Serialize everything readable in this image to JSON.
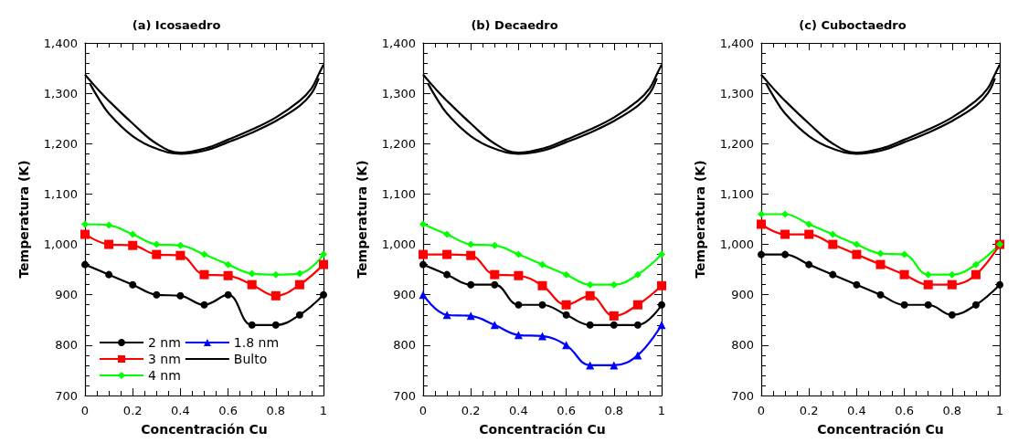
{
  "chart_data": [
    {
      "type": "line",
      "title": "(a) Icosaedro",
      "xlabel": "Concentración Cu",
      "ylabel": "Temperatura (K)",
      "xlim": [
        0,
        1
      ],
      "xticks": [
        0,
        0.2,
        0.4,
        0.6,
        0.8,
        1
      ],
      "ylim": [
        700,
        1400
      ],
      "yticks": [
        700,
        800,
        900,
        {
          "value": 1000,
          "label": "1,000"
        },
        {
          "value": 1100,
          "label": "1,100"
        },
        {
          "value": 1200,
          "label": "1,200"
        },
        {
          "value": 1300,
          "label": "1,300"
        },
        {
          "value": 1400,
          "label": "1,400"
        }
      ],
      "grid": false,
      "legend": "bottom left",
      "series": [
        {
          "name": "2 nm",
          "color": "#000000",
          "marker": "circle",
          "x": [
            0,
            0.1,
            0.2,
            0.3,
            0.4,
            0.5,
            0.6,
            0.7,
            0.8,
            0.9,
            1
          ],
          "values": [
            960,
            940,
            920,
            900,
            898,
            880,
            900,
            840,
            840,
            860,
            900
          ]
        },
        {
          "name": "3 nm",
          "color": "#ff0000",
          "marker": "square",
          "x": [
            0,
            0.1,
            0.2,
            0.3,
            0.4,
            0.5,
            0.6,
            0.7,
            0.8,
            0.9,
            1
          ],
          "values": [
            1020,
            1000,
            998,
            980,
            978,
            940,
            938,
            920,
            898,
            920,
            960
          ]
        },
        {
          "name": "4 nm",
          "color": "#00ff00",
          "marker": "diamond",
          "x": [
            0,
            0.1,
            0.2,
            0.3,
            0.4,
            0.5,
            0.6,
            0.7,
            0.8,
            0.9,
            1
          ],
          "values": [
            1040,
            1038,
            1020,
            1000,
            998,
            980,
            960,
            942,
            940,
            942,
            980
          ]
        },
        {
          "name": "1.8 nm",
          "color": "#0000ff",
          "marker": "triangle"
        },
        {
          "name": "Bulto",
          "color": "#000000",
          "marker": "none",
          "x": [
            0,
            0.02,
            0.05,
            0.1,
            0.2,
            0.3,
            0.4,
            0.5,
            0.6,
            0.7,
            0.8,
            0.9,
            0.95,
            0.98,
            1
          ],
          "values": [
            1337,
            1326,
            1310,
            1285,
            1240,
            1200,
            1182,
            1190,
            1208,
            1228,
            1252,
            1285,
            1310,
            1338,
            1357
          ]
        },
        {
          "color": "#000000",
          "marker": "none",
          "x": [
            0.02,
            0.05,
            0.1,
            0.2,
            0.3,
            0.4,
            0.5,
            0.6,
            0.7,
            0.8,
            0.9,
            0.95,
            0.98
          ],
          "values": [
            1320,
            1295,
            1260,
            1215,
            1190,
            1180,
            1186,
            1203,
            1222,
            1245,
            1275,
            1300,
            1330
          ]
        }
      ]
    },
    {
      "type": "line",
      "title": "(b) Decaedro",
      "xlabel": "Concentración Cu",
      "ylabel": "Temperatura (K)",
      "xlim": [
        0,
        1
      ],
      "xticks": [
        0,
        0.2,
        0.4,
        0.6,
        0.8,
        1
      ],
      "ylim": [
        700,
        1400
      ],
      "yticks": [
        700,
        800,
        900,
        {
          "value": 1000,
          "label": "1,000"
        },
        {
          "value": 1100,
          "label": "1,100"
        },
        {
          "value": 1200,
          "label": "1,200"
        },
        {
          "value": 1300,
          "label": "1,300"
        },
        {
          "value": 1400,
          "label": "1,400"
        }
      ],
      "grid": false,
      "series": [
        {
          "color": "#000000",
          "marker": "circle",
          "x": [
            0,
            0.1,
            0.2,
            0.3,
            0.4,
            0.5,
            0.6,
            0.7,
            0.8,
            0.9,
            1
          ],
          "values": [
            960,
            940,
            920,
            920,
            880,
            880,
            860,
            840,
            840,
            840,
            880
          ]
        },
        {
          "color": "#ff0000",
          "marker": "square",
          "x": [
            0,
            0.1,
            0.2,
            0.3,
            0.4,
            0.5,
            0.6,
            0.7,
            0.8,
            0.9,
            1
          ],
          "values": [
            980,
            980,
            978,
            940,
            938,
            918,
            880,
            898,
            858,
            880,
            918
          ]
        },
        {
          "color": "#00ff00",
          "marker": "diamond",
          "x": [
            0,
            0.1,
            0.2,
            0.3,
            0.4,
            0.5,
            0.6,
            0.7,
            0.8,
            0.9,
            1
          ],
          "values": [
            1040,
            1020,
            1000,
            998,
            980,
            960,
            940,
            920,
            920,
            940,
            980
          ]
        },
        {
          "color": "#0000ff",
          "marker": "triangle",
          "x": [
            0,
            0.1,
            0.2,
            0.3,
            0.4,
            0.5,
            0.6,
            0.7,
            0.8,
            0.9,
            1
          ],
          "values": [
            900,
            860,
            858,
            840,
            820,
            818,
            800,
            760,
            760,
            780,
            840
          ]
        },
        {
          "color": "#000000",
          "marker": "none",
          "x": [
            0,
            0.02,
            0.05,
            0.1,
            0.2,
            0.3,
            0.4,
            0.5,
            0.6,
            0.7,
            0.8,
            0.9,
            0.95,
            0.98,
            1
          ],
          "values": [
            1337,
            1326,
            1310,
            1285,
            1240,
            1200,
            1182,
            1190,
            1208,
            1228,
            1252,
            1285,
            1310,
            1338,
            1357
          ]
        },
        {
          "color": "#000000",
          "marker": "none",
          "x": [
            0.02,
            0.05,
            0.1,
            0.2,
            0.3,
            0.4,
            0.5,
            0.6,
            0.7,
            0.8,
            0.9,
            0.95,
            0.98
          ],
          "values": [
            1320,
            1295,
            1260,
            1215,
            1190,
            1180,
            1186,
            1203,
            1222,
            1245,
            1275,
            1300,
            1330
          ]
        }
      ]
    },
    {
      "type": "line",
      "title": "(c) Cuboctaedro",
      "xlabel": "Concentración Cu",
      "ylabel": "Temperatura (K)",
      "xlim": [
        0,
        1
      ],
      "xticks": [
        0,
        0.2,
        0.4,
        0.6,
        0.8,
        1
      ],
      "ylim": [
        700,
        1400
      ],
      "yticks": [
        700,
        800,
        900,
        {
          "value": 1000,
          "label": "1,000"
        },
        {
          "value": 1100,
          "label": "1,100"
        },
        {
          "value": 1200,
          "label": "1,200"
        },
        {
          "value": 1300,
          "label": "1,300"
        },
        {
          "value": 1400,
          "label": "1,400"
        }
      ],
      "grid": false,
      "series": [
        {
          "color": "#000000",
          "marker": "circle",
          "x": [
            0,
            0.1,
            0.2,
            0.3,
            0.4,
            0.5,
            0.6,
            0.7,
            0.8,
            0.9,
            1
          ],
          "values": [
            980,
            980,
            960,
            940,
            920,
            900,
            880,
            880,
            860,
            880,
            920
          ]
        },
        {
          "color": "#ff0000",
          "marker": "square",
          "x": [
            0,
            0.1,
            0.2,
            0.3,
            0.4,
            0.5,
            0.6,
            0.7,
            0.8,
            0.9,
            1
          ],
          "values": [
            1040,
            1020,
            1020,
            1000,
            980,
            960,
            940,
            920,
            920,
            940,
            1000
          ]
        },
        {
          "color": "#00ff00",
          "marker": "diamond",
          "x": [
            0,
            0.1,
            0.2,
            0.3,
            0.4,
            0.5,
            0.6,
            0.7,
            0.8,
            0.9,
            1
          ],
          "values": [
            1060,
            1060,
            1040,
            1020,
            1000,
            982,
            980,
            940,
            940,
            960,
            1000
          ]
        },
        {
          "color": "#000000",
          "marker": "none",
          "x": [
            0,
            0.02,
            0.05,
            0.1,
            0.2,
            0.3,
            0.4,
            0.5,
            0.6,
            0.7,
            0.8,
            0.9,
            0.95,
            0.98,
            1
          ],
          "values": [
            1337,
            1326,
            1310,
            1285,
            1240,
            1200,
            1182,
            1190,
            1208,
            1228,
            1252,
            1285,
            1310,
            1338,
            1357
          ]
        },
        {
          "color": "#000000",
          "marker": "none",
          "x": [
            0.02,
            0.05,
            0.1,
            0.2,
            0.3,
            0.4,
            0.5,
            0.6,
            0.7,
            0.8,
            0.9,
            0.95,
            0.98
          ],
          "values": [
            1320,
            1295,
            1260,
            1215,
            1190,
            1180,
            1186,
            1203,
            1222,
            1245,
            1275,
            1300,
            1330
          ]
        }
      ]
    }
  ]
}
